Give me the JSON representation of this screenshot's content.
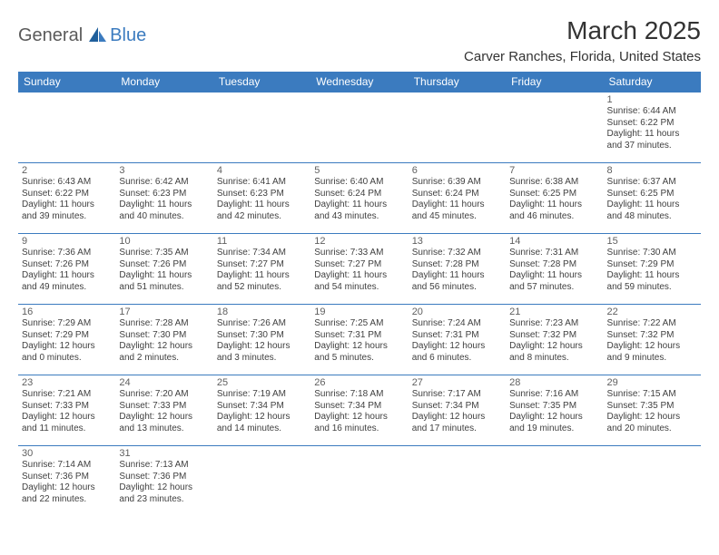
{
  "logo": {
    "part1": "General",
    "part2": "Blue"
  },
  "title": "March 2025",
  "location": "Carver Ranches, Florida, United States",
  "colors": {
    "header_bg": "#3b7bbf",
    "header_fg": "#ffffff",
    "rule": "#3b7bbf",
    "text": "#404040",
    "daynum": "#606060",
    "logo_gray": "#5a5a5a",
    "logo_blue": "#3b7bbf"
  },
  "weekdays": [
    "Sunday",
    "Monday",
    "Tuesday",
    "Wednesday",
    "Thursday",
    "Friday",
    "Saturday"
  ],
  "weeks": [
    [
      null,
      null,
      null,
      null,
      null,
      null,
      {
        "n": "1",
        "sr": "Sunrise: 6:44 AM",
        "ss": "Sunset: 6:22 PM",
        "d1": "Daylight: 11 hours",
        "d2": "and 37 minutes."
      }
    ],
    [
      {
        "n": "2",
        "sr": "Sunrise: 6:43 AM",
        "ss": "Sunset: 6:22 PM",
        "d1": "Daylight: 11 hours",
        "d2": "and 39 minutes."
      },
      {
        "n": "3",
        "sr": "Sunrise: 6:42 AM",
        "ss": "Sunset: 6:23 PM",
        "d1": "Daylight: 11 hours",
        "d2": "and 40 minutes."
      },
      {
        "n": "4",
        "sr": "Sunrise: 6:41 AM",
        "ss": "Sunset: 6:23 PM",
        "d1": "Daylight: 11 hours",
        "d2": "and 42 minutes."
      },
      {
        "n": "5",
        "sr": "Sunrise: 6:40 AM",
        "ss": "Sunset: 6:24 PM",
        "d1": "Daylight: 11 hours",
        "d2": "and 43 minutes."
      },
      {
        "n": "6",
        "sr": "Sunrise: 6:39 AM",
        "ss": "Sunset: 6:24 PM",
        "d1": "Daylight: 11 hours",
        "d2": "and 45 minutes."
      },
      {
        "n": "7",
        "sr": "Sunrise: 6:38 AM",
        "ss": "Sunset: 6:25 PM",
        "d1": "Daylight: 11 hours",
        "d2": "and 46 minutes."
      },
      {
        "n": "8",
        "sr": "Sunrise: 6:37 AM",
        "ss": "Sunset: 6:25 PM",
        "d1": "Daylight: 11 hours",
        "d2": "and 48 minutes."
      }
    ],
    [
      {
        "n": "9",
        "sr": "Sunrise: 7:36 AM",
        "ss": "Sunset: 7:26 PM",
        "d1": "Daylight: 11 hours",
        "d2": "and 49 minutes."
      },
      {
        "n": "10",
        "sr": "Sunrise: 7:35 AM",
        "ss": "Sunset: 7:26 PM",
        "d1": "Daylight: 11 hours",
        "d2": "and 51 minutes."
      },
      {
        "n": "11",
        "sr": "Sunrise: 7:34 AM",
        "ss": "Sunset: 7:27 PM",
        "d1": "Daylight: 11 hours",
        "d2": "and 52 minutes."
      },
      {
        "n": "12",
        "sr": "Sunrise: 7:33 AM",
        "ss": "Sunset: 7:27 PM",
        "d1": "Daylight: 11 hours",
        "d2": "and 54 minutes."
      },
      {
        "n": "13",
        "sr": "Sunrise: 7:32 AM",
        "ss": "Sunset: 7:28 PM",
        "d1": "Daylight: 11 hours",
        "d2": "and 56 minutes."
      },
      {
        "n": "14",
        "sr": "Sunrise: 7:31 AM",
        "ss": "Sunset: 7:28 PM",
        "d1": "Daylight: 11 hours",
        "d2": "and 57 minutes."
      },
      {
        "n": "15",
        "sr": "Sunrise: 7:30 AM",
        "ss": "Sunset: 7:29 PM",
        "d1": "Daylight: 11 hours",
        "d2": "and 59 minutes."
      }
    ],
    [
      {
        "n": "16",
        "sr": "Sunrise: 7:29 AM",
        "ss": "Sunset: 7:29 PM",
        "d1": "Daylight: 12 hours",
        "d2": "and 0 minutes."
      },
      {
        "n": "17",
        "sr": "Sunrise: 7:28 AM",
        "ss": "Sunset: 7:30 PM",
        "d1": "Daylight: 12 hours",
        "d2": "and 2 minutes."
      },
      {
        "n": "18",
        "sr": "Sunrise: 7:26 AM",
        "ss": "Sunset: 7:30 PM",
        "d1": "Daylight: 12 hours",
        "d2": "and 3 minutes."
      },
      {
        "n": "19",
        "sr": "Sunrise: 7:25 AM",
        "ss": "Sunset: 7:31 PM",
        "d1": "Daylight: 12 hours",
        "d2": "and 5 minutes."
      },
      {
        "n": "20",
        "sr": "Sunrise: 7:24 AM",
        "ss": "Sunset: 7:31 PM",
        "d1": "Daylight: 12 hours",
        "d2": "and 6 minutes."
      },
      {
        "n": "21",
        "sr": "Sunrise: 7:23 AM",
        "ss": "Sunset: 7:32 PM",
        "d1": "Daylight: 12 hours",
        "d2": "and 8 minutes."
      },
      {
        "n": "22",
        "sr": "Sunrise: 7:22 AM",
        "ss": "Sunset: 7:32 PM",
        "d1": "Daylight: 12 hours",
        "d2": "and 9 minutes."
      }
    ],
    [
      {
        "n": "23",
        "sr": "Sunrise: 7:21 AM",
        "ss": "Sunset: 7:33 PM",
        "d1": "Daylight: 12 hours",
        "d2": "and 11 minutes."
      },
      {
        "n": "24",
        "sr": "Sunrise: 7:20 AM",
        "ss": "Sunset: 7:33 PM",
        "d1": "Daylight: 12 hours",
        "d2": "and 13 minutes."
      },
      {
        "n": "25",
        "sr": "Sunrise: 7:19 AM",
        "ss": "Sunset: 7:34 PM",
        "d1": "Daylight: 12 hours",
        "d2": "and 14 minutes."
      },
      {
        "n": "26",
        "sr": "Sunrise: 7:18 AM",
        "ss": "Sunset: 7:34 PM",
        "d1": "Daylight: 12 hours",
        "d2": "and 16 minutes."
      },
      {
        "n": "27",
        "sr": "Sunrise: 7:17 AM",
        "ss": "Sunset: 7:34 PM",
        "d1": "Daylight: 12 hours",
        "d2": "and 17 minutes."
      },
      {
        "n": "28",
        "sr": "Sunrise: 7:16 AM",
        "ss": "Sunset: 7:35 PM",
        "d1": "Daylight: 12 hours",
        "d2": "and 19 minutes."
      },
      {
        "n": "29",
        "sr": "Sunrise: 7:15 AM",
        "ss": "Sunset: 7:35 PM",
        "d1": "Daylight: 12 hours",
        "d2": "and 20 minutes."
      }
    ],
    [
      {
        "n": "30",
        "sr": "Sunrise: 7:14 AM",
        "ss": "Sunset: 7:36 PM",
        "d1": "Daylight: 12 hours",
        "d2": "and 22 minutes."
      },
      {
        "n": "31",
        "sr": "Sunrise: 7:13 AM",
        "ss": "Sunset: 7:36 PM",
        "d1": "Daylight: 12 hours",
        "d2": "and 23 minutes."
      },
      null,
      null,
      null,
      null,
      null
    ]
  ]
}
